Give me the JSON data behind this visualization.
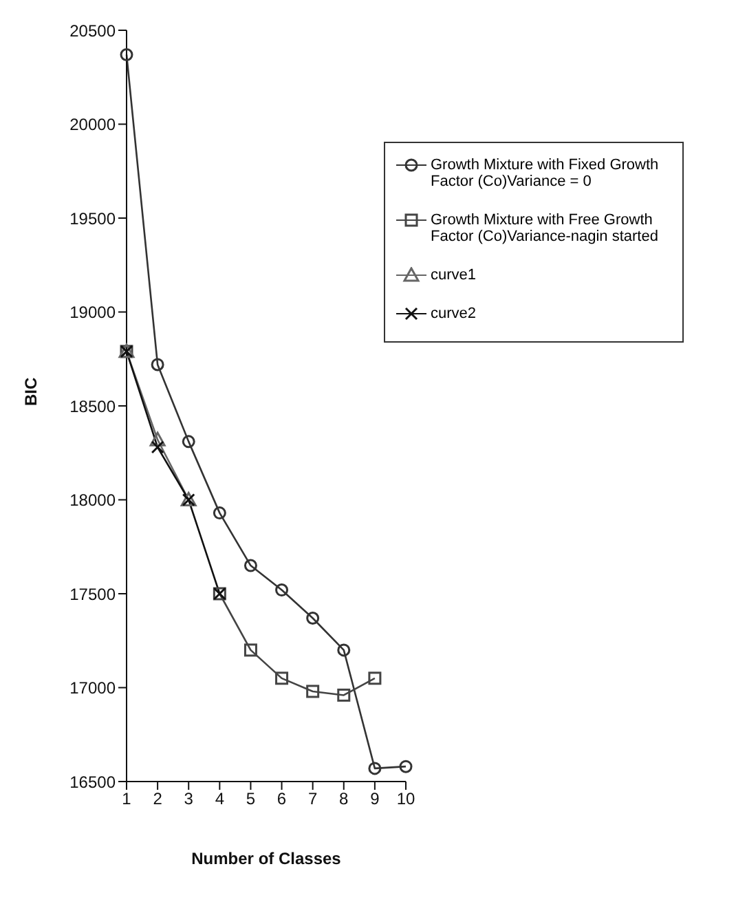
{
  "chart_data": {
    "type": "line",
    "xlabel": "Number of Classes",
    "ylabel": "BIC",
    "categories": [
      "1",
      "2",
      "3",
      "4",
      "5",
      "6",
      "7",
      "8",
      "9",
      "10"
    ],
    "ylim": [
      16500,
      20500
    ],
    "yticks": [
      16500,
      17000,
      17500,
      18000,
      18500,
      19000,
      19500,
      20000,
      20500
    ],
    "grid": false,
    "legend": "top right",
    "line_style": "solid",
    "series": [
      {
        "name": "Growth Mixture with Fixed Growth Factor (Co)Variance = 0",
        "color": "#333333",
        "marker": "circle",
        "values": [
          20370,
          18720,
          18310,
          17930,
          17650,
          17520,
          17370,
          17200,
          16570,
          16580
        ]
      },
      {
        "name": "Growth Mixture with Free Growth Factor (Co)Variance-nagin started",
        "color": "#444444",
        "marker": "square",
        "values": [
          18790,
          null,
          null,
          17500,
          17200,
          17050,
          16980,
          16960,
          17050,
          null
        ]
      },
      {
        "name": "curve1",
        "color": "#666666",
        "marker": "triangle",
        "values": [
          18790,
          18320,
          18000,
          null,
          null,
          null,
          null,
          null,
          null,
          null
        ]
      },
      {
        "name": "curve2",
        "color": "#111111",
        "marker": "cross",
        "values": [
          18790,
          18280,
          18000,
          17500,
          null,
          null,
          null,
          null,
          null,
          null
        ]
      }
    ]
  }
}
